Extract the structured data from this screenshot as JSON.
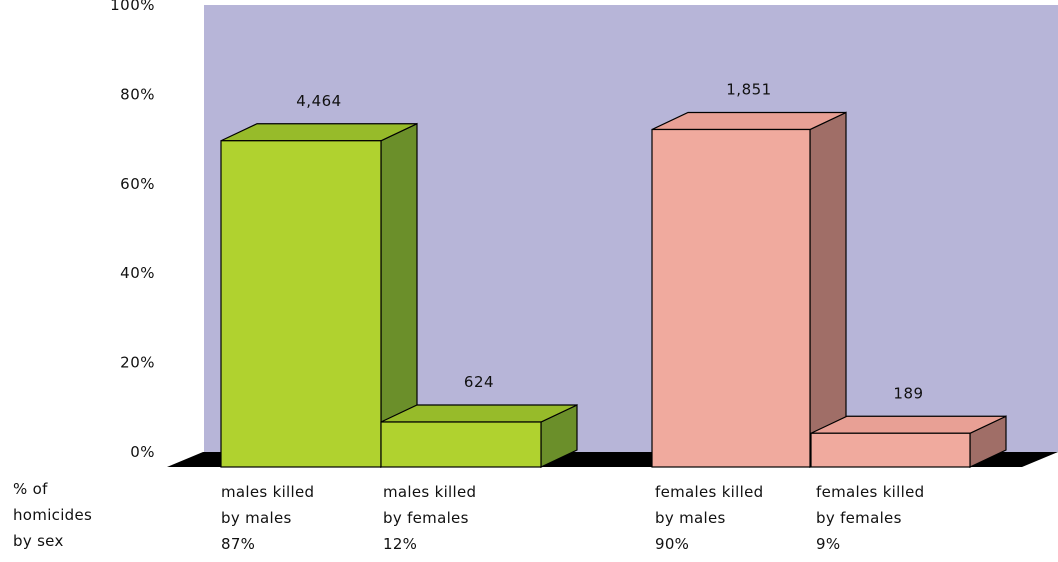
{
  "chart_data": {
    "type": "bar",
    "ylabel": "% of homicides by sex",
    "ylim": [
      0,
      100
    ],
    "yticks": [
      "0%",
      "20%",
      "40%",
      "60%",
      "80%",
      "100%"
    ],
    "categories": [
      {
        "line1": "males killed",
        "line2": "by males",
        "pct_label": "87%"
      },
      {
        "line1": "males killed",
        "line2": "by females",
        "pct_label": "12%"
      },
      {
        "line1": "females killed",
        "line2": "by males",
        "pct_label": "90%"
      },
      {
        "line1": "females killed",
        "line2": "by females",
        "pct_label": "9%"
      }
    ],
    "values": [
      87,
      12,
      90,
      9
    ],
    "counts": [
      "4,464",
      "624",
      "1,851",
      "189"
    ],
    "colors": {
      "green_front": "#b0d22f",
      "green_side": "#6b8f2a",
      "green_top": "#97bb2a",
      "pink_front": "#f0aa9e",
      "pink_side": "#a06e67",
      "pink_top": "#e8a095",
      "back_wall": "#b7b5d8",
      "floor": "#000000"
    },
    "grid": false
  }
}
